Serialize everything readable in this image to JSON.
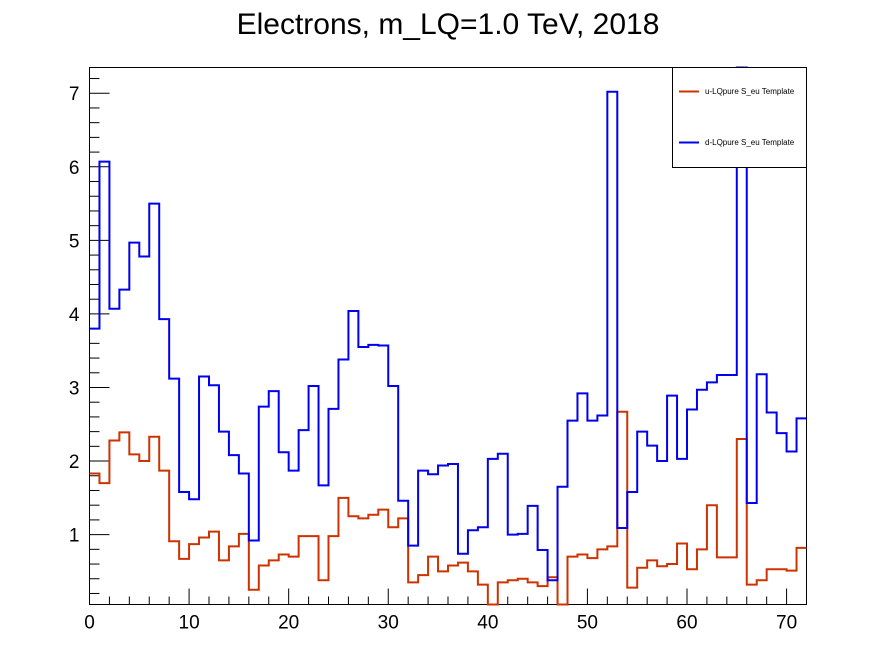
{
  "chart_data": {
    "type": "line",
    "style": "step-histogram",
    "title": "Electrons, m_LQ=1.0 TeV, 2018",
    "xlabel": "",
    "ylabel": "",
    "xlim": [
      0,
      72
    ],
    "ylim": [
      0.05,
      7.35
    ],
    "grid": false,
    "legend_position": "top-right",
    "x_ticks": [
      0,
      10,
      20,
      30,
      40,
      50,
      60,
      70
    ],
    "y_ticks": [
      1,
      2,
      3,
      4,
      5,
      6,
      7
    ],
    "bin_width": 1,
    "series": [
      {
        "name": "u-LQpure S_eu Template",
        "color": "#cc3300",
        "values": [
          1.83,
          1.7,
          2.28,
          2.39,
          2.09,
          2.0,
          2.33,
          1.87,
          0.91,
          0.67,
          0.87,
          0.96,
          1.04,
          0.65,
          0.84,
          1.01,
          0.25,
          0.58,
          0.65,
          0.73,
          0.7,
          0.98,
          0.98,
          0.38,
          0.98,
          1.5,
          1.25,
          1.22,
          1.27,
          1.34,
          1.1,
          1.22,
          0.35,
          0.45,
          0.7,
          0.5,
          0.58,
          0.62,
          0.5,
          0.32,
          0.05,
          0.35,
          0.38,
          0.4,
          0.35,
          0.3,
          0.42,
          0.05,
          0.7,
          0.73,
          0.68,
          0.8,
          0.84,
          2.67,
          0.28,
          0.55,
          0.65,
          0.57,
          0.6,
          0.88,
          0.53,
          0.8,
          1.4,
          0.69,
          0.69,
          2.3,
          0.32,
          0.38,
          0.53,
          0.53,
          0.51,
          0.82
        ]
      },
      {
        "name": "d-LQpure S_eu Template",
        "color": "#0000ee",
        "values": [
          3.8,
          6.07,
          4.07,
          4.33,
          4.97,
          4.78,
          5.5,
          3.93,
          3.12,
          1.58,
          1.48,
          3.15,
          3.03,
          2.4,
          2.08,
          1.83,
          0.92,
          2.74,
          2.95,
          2.12,
          1.87,
          2.42,
          3.02,
          1.67,
          2.71,
          3.38,
          4.04,
          3.55,
          3.58,
          3.57,
          3.02,
          1.46,
          0.85,
          1.87,
          1.82,
          1.94,
          1.96,
          0.74,
          1.06,
          1.1,
          2.03,
          2.1,
          1.0,
          1.01,
          1.39,
          0.79,
          0.38,
          1.65,
          2.55,
          2.92,
          2.55,
          2.62,
          7.02,
          1.09,
          1.58,
          2.4,
          2.21,
          2.0,
          2.89,
          2.03,
          2.7,
          2.97,
          3.07,
          3.17,
          3.17,
          7.35,
          1.43,
          3.18,
          2.66,
          2.38,
          2.13,
          2.58
        ]
      }
    ]
  }
}
